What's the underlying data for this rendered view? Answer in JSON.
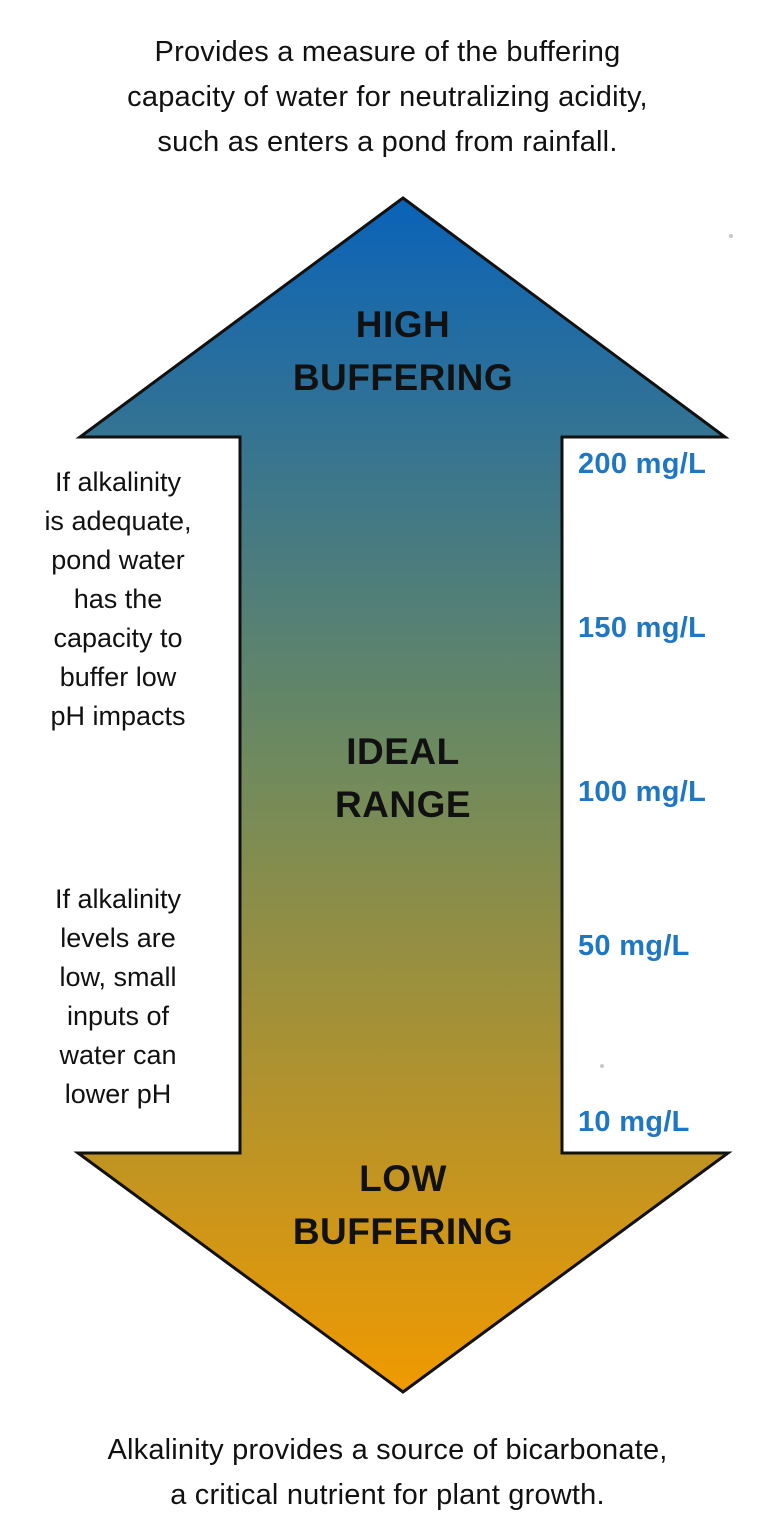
{
  "top_caption": {
    "line1": "Provides a measure of the buffering",
    "line2": "capacity of water for neutralizing acidity,",
    "line3": "such as enters a pond from rainfall."
  },
  "arrow": {
    "high_label": {
      "line1": "HIGH",
      "line2": "BUFFERING"
    },
    "middle_label": {
      "line1": "IDEAL",
      "line2": "RANGE"
    },
    "low_label": {
      "line1": "LOW",
      "line2": "BUFFERING"
    },
    "colors": {
      "top": "#0a63b8",
      "middle": "#6e8a5e",
      "bottom": "#f09a00",
      "outline": "#111111"
    }
  },
  "left_notes": {
    "adequate": {
      "lines": [
        "If alkalinity",
        "is adequate,",
        "pond water",
        "has the",
        "capacity to",
        "buffer low",
        "pH impacts"
      ]
    },
    "low": {
      "lines": [
        "If alkalinity",
        "levels are",
        "low, small",
        "inputs of",
        "water can",
        "lower pH"
      ]
    }
  },
  "levels": [
    {
      "label": "200 mg/L"
    },
    {
      "label": "150 mg/L"
    },
    {
      "label": "100 mg/L"
    },
    {
      "label": "50 mg/L"
    },
    {
      "label": "10 mg/L"
    }
  ],
  "level_color": "#1f77c4",
  "bottom_caption": {
    "line1": "Alkalinity provides a source of bicarbonate,",
    "line2": "a critical nutrient for plant growth."
  }
}
